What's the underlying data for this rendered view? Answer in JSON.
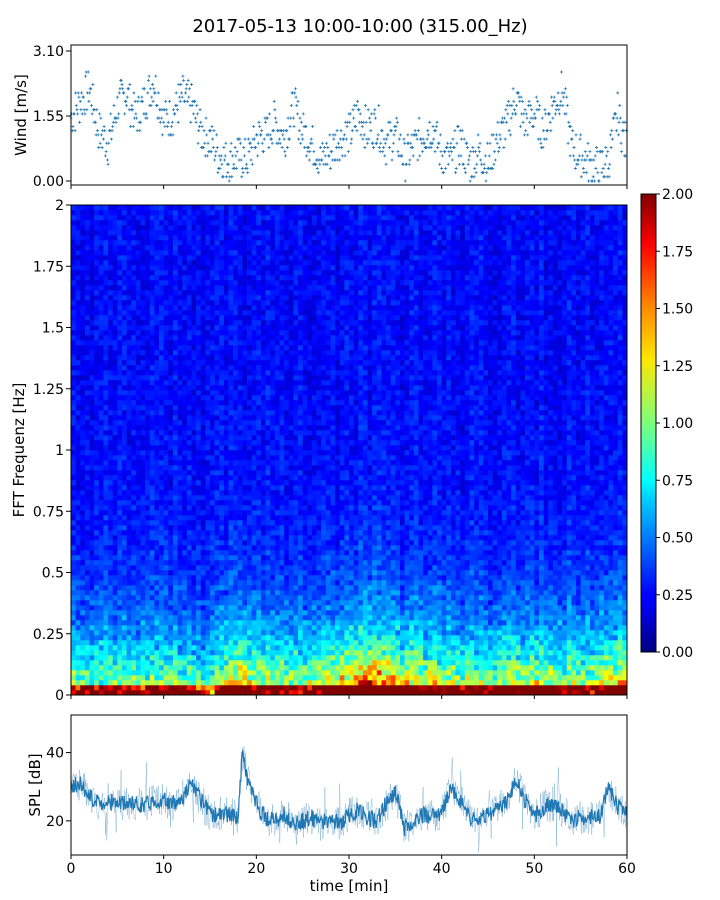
{
  "title": "2017-05-13 10:00-10:00 (315.00_Hz)",
  "colors": {
    "series": "#1f77b4",
    "axis": "#000000",
    "background": "#ffffff",
    "colormap": "jet"
  },
  "chart_data": [
    {
      "id": "wind",
      "type": "scatter",
      "title": "",
      "xlabel": "",
      "ylabel": "Wind [m/s]",
      "xlim": [
        0,
        60
      ],
      "ylim": [
        0,
        3.1
      ],
      "yticks": [
        "0.00",
        "1.55",
        "3.10"
      ],
      "xticks": [
        0,
        10,
        20,
        30,
        40,
        50,
        60
      ],
      "xticklabels_visible": false,
      "marker": "+",
      "series": [
        {
          "x": [
            0,
            1,
            2,
            3,
            4,
            5,
            6,
            7,
            8,
            9,
            10,
            11,
            12,
            13,
            14,
            15,
            16,
            17,
            18,
            19,
            20,
            21,
            22,
            23,
            24,
            25,
            26,
            27,
            28,
            29,
            30,
            31,
            32,
            33,
            34,
            35,
            36,
            37,
            38,
            39,
            40,
            41,
            42,
            43,
            44,
            45,
            46,
            47,
            48,
            49,
            50,
            51,
            52,
            53,
            54,
            55,
            56,
            57,
            58,
            59,
            60
          ],
          "values": [
            1.5,
            1.9,
            2.2,
            1.2,
            0.9,
            1.8,
            2.1,
            1.5,
            1.9,
            2.4,
            1.4,
            1.6,
            2.0,
            1.8,
            1.2,
            1.0,
            0.6,
            0.5,
            0.6,
            0.5,
            1.0,
            1.1,
            1.4,
            1.0,
            1.8,
            1.2,
            0.9,
            0.5,
            0.7,
            1.0,
            1.1,
            1.6,
            1.2,
            1.4,
            0.9,
            1.1,
            0.5,
            0.8,
            1.1,
            1.3,
            0.6,
            0.5,
            0.9,
            0.4,
            0.7,
            0.4,
            1.0,
            1.3,
            2.0,
            1.4,
            1.6,
            1.2,
            1.8,
            2.2,
            0.8,
            0.6,
            0.4,
            0.3,
            0.5,
            1.6,
            0.7
          ]
        }
      ]
    },
    {
      "id": "spectrogram",
      "type": "heatmap",
      "title": "",
      "xlabel": "",
      "ylabel": "FFT Frequenz [Hz]",
      "xlim": [
        0,
        60
      ],
      "ylim": [
        0,
        2
      ],
      "yticks": [
        "0",
        "0.25",
        "0.5",
        "0.75",
        "1",
        "1.25",
        "1.5",
        "1.75",
        "2"
      ],
      "colormap": "jet",
      "colorbar": {
        "range": [
          0,
          2
        ],
        "ticks": [
          "0.00",
          "0.25",
          "0.50",
          "0.75",
          "1.00",
          "1.25",
          "1.50",
          "1.75",
          "2.00"
        ]
      },
      "description_values": {
        "time_min": [
          0,
          5,
          10,
          15,
          18,
          20,
          25,
          30,
          32,
          35,
          40,
          45,
          50,
          55,
          60
        ],
        "low_freq_intensity": [
          0.9,
          0.8,
          0.9,
          0.7,
          1.3,
          1.0,
          0.9,
          1.2,
          1.5,
          1.2,
          1.0,
          0.9,
          1.1,
          0.9,
          1.2
        ]
      }
    },
    {
      "id": "spl",
      "type": "line",
      "title": "",
      "xlabel": "time [min]",
      "ylabel": "SPL [dB]",
      "xlim": [
        0,
        60
      ],
      "ylim": [
        10,
        51
      ],
      "yticks": [
        "20",
        "40"
      ],
      "xticks": [
        "0",
        "10",
        "20",
        "30",
        "40",
        "50",
        "60"
      ],
      "series": [
        {
          "x": [
            0,
            1,
            2,
            3,
            4,
            5,
            6,
            7,
            8,
            9,
            10,
            11,
            12,
            13,
            14,
            15,
            16,
            17,
            18,
            18.5,
            19,
            20,
            21,
            22,
            23,
            24,
            25,
            26,
            27,
            28,
            29,
            30,
            31,
            32,
            33,
            34,
            35,
            36,
            37,
            38,
            39,
            40,
            41,
            42,
            43,
            44,
            45,
            46,
            47,
            48,
            49,
            50,
            51,
            52,
            53,
            54,
            55,
            56,
            57,
            58,
            59,
            60
          ],
          "values": [
            30,
            31,
            27,
            25,
            26,
            25,
            25,
            25,
            25,
            26,
            26,
            25,
            27,
            31,
            26,
            22,
            22,
            22,
            21,
            40,
            33,
            25,
            21,
            20,
            22,
            19,
            20,
            21,
            19,
            21,
            19,
            22,
            23,
            21,
            20,
            25,
            28,
            18,
            19,
            22,
            21,
            22,
            30,
            26,
            21,
            20,
            22,
            23,
            26,
            32,
            26,
            21,
            24,
            25,
            23,
            20,
            21,
            21,
            21,
            30,
            24,
            22
          ]
        }
      ]
    }
  ]
}
